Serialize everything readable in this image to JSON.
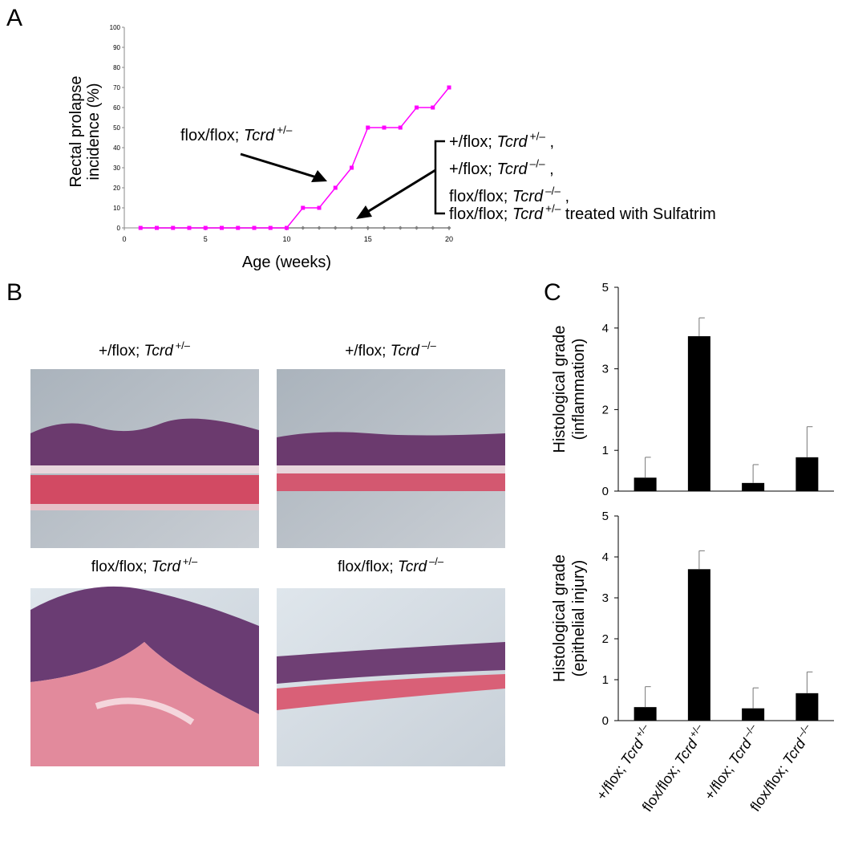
{
  "panels": {
    "letters": [
      "A",
      "B",
      "C"
    ]
  },
  "histology": [
    {
      "title": [
        "+/flox; ",
        "Tcrd",
        "+/–"
      ]
    },
    {
      "title": [
        "+/flox; ",
        "Tcrd",
        "–/–"
      ]
    },
    {
      "title": [
        "flox/flox; ",
        "Tcrd",
        "+/–"
      ]
    },
    {
      "title": [
        "flox/flox; ",
        "Tcrd",
        "–/–"
      ]
    }
  ],
  "chart_data": [
    {
      "type": "line",
      "x_label": "Age (weeks)",
      "y_label": [
        "Rectal prolapse",
        "incidence (%)"
      ],
      "x": [
        1,
        2,
        3,
        4,
        5,
        6,
        7,
        8,
        9,
        10,
        11,
        12,
        13,
        14,
        15,
        16,
        17,
        18,
        19,
        20
      ],
      "xlim": [
        0,
        20
      ],
      "xticks": [
        0,
        5,
        10,
        15,
        20
      ],
      "ylim": [
        0,
        100
      ],
      "yticks": [
        0,
        10,
        20,
        30,
        40,
        50,
        60,
        70,
        80,
        90,
        100
      ],
      "series": [
        {
          "color": "#808080",
          "marker": "diamond",
          "values": [
            0,
            0,
            0,
            0,
            0,
            0,
            0,
            0,
            0,
            0,
            0,
            0,
            0,
            0,
            0,
            0,
            0,
            0,
            0,
            0
          ]
        },
        {
          "color": "#ff00ff",
          "marker": "square",
          "values": [
            0,
            0,
            0,
            0,
            0,
            0,
            0,
            0,
            0,
            0,
            10,
            10,
            20,
            30,
            50,
            50,
            50,
            60,
            60,
            70
          ]
        }
      ],
      "annotations": [
        {
          "lines": [
            [
              "flox/flox; ",
              "Tcrd",
              "+/–"
            ]
          ]
        },
        {
          "lines": [
            [
              "+/flox; ",
              "Tcrd",
              "+/–",
              " ,"
            ],
            [
              "+/flox; ",
              "Tcrd",
              "–/–",
              " ,"
            ],
            [
              "flox/flox; ",
              "Tcrd",
              "–/–",
              " ,"
            ],
            [
              "flox/flox; ",
              "Tcrd",
              "+/–",
              "  treated with Sulfatrim"
            ]
          ]
        }
      ]
    },
    {
      "type": "bar",
      "y_label": [
        "Histological grade",
        "(inflammation)"
      ],
      "color": "#000000",
      "ylim": [
        0,
        5
      ],
      "yticks": [
        0,
        1,
        2,
        3,
        4,
        5
      ],
      "values": [
        0.33,
        3.8,
        0.2,
        0.83
      ],
      "errors": [
        0.5,
        0.45,
        0.45,
        0.75
      ]
    },
    {
      "type": "bar",
      "y_label": [
        "Histological grade",
        "(epithelial injury)"
      ],
      "color": "#000000",
      "ylim": [
        0,
        5
      ],
      "yticks": [
        0,
        1,
        2,
        3,
        4,
        5
      ],
      "values": [
        0.33,
        3.7,
        0.3,
        0.67
      ],
      "errors": [
        0.5,
        0.45,
        0.5,
        0.52
      ],
      "categories": [
        [
          "+/flox; ",
          "Tcrd",
          "+/–"
        ],
        [
          "flox/flox; ",
          "Tcrd",
          "+/–"
        ],
        [
          "+/flox; ",
          "Tcrd",
          "–/–"
        ],
        [
          "flox/flox; ",
          "Tcrd",
          "–/–"
        ]
      ]
    }
  ]
}
